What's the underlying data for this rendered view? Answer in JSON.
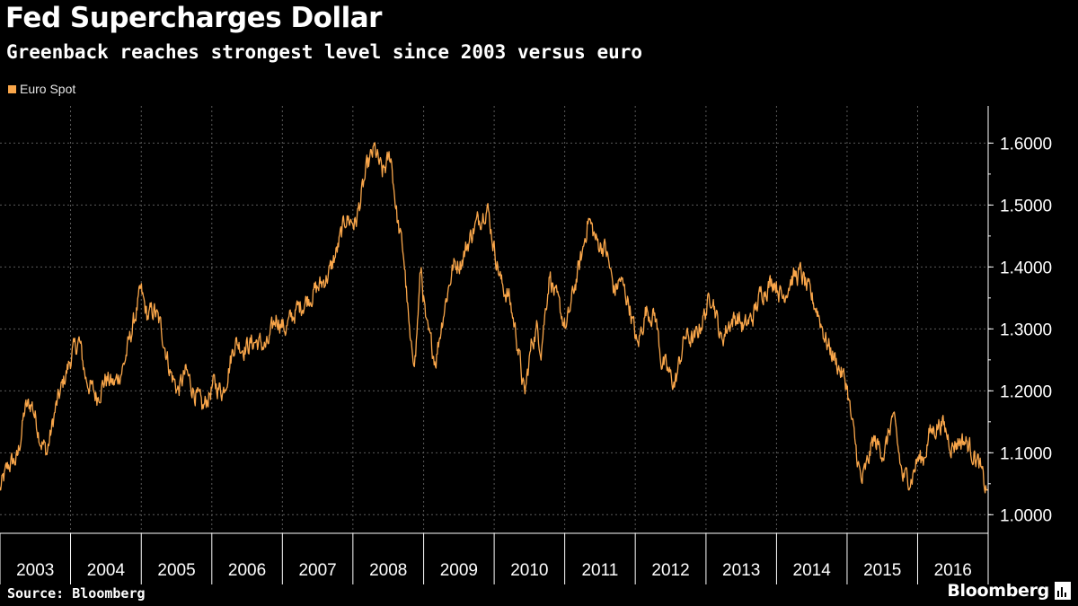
{
  "header": {
    "title": "Fed Supercharges Dollar",
    "subtitle": "Greenback reaches strongest level since 2003 versus euro"
  },
  "footer": {
    "source": "Source: Bloomberg",
    "brand": "Bloomberg"
  },
  "colors": {
    "background": "#000000",
    "series": "#f9a64a",
    "grid": "#5a5a5a",
    "axis": "#ffffff"
  },
  "icons": [
    "bloomberg-logo-icon"
  ],
  "chart_data": {
    "type": "line",
    "legend": "top-left",
    "grid": true,
    "x_type": "date",
    "xlim": [
      "2003-01-01",
      "2016-12-31"
    ],
    "ylim": [
      0.97,
      1.66
    ],
    "x_ticks": [
      "2003",
      "2004",
      "2005",
      "2006",
      "2007",
      "2008",
      "2009",
      "2010",
      "2011",
      "2012",
      "2013",
      "2014",
      "2015",
      "2016"
    ],
    "y_ticks": [
      "1.6000",
      "1.5000",
      "1.4000",
      "1.3000",
      "1.2000",
      "1.1000",
      "1.0000"
    ],
    "series": [
      {
        "name": "Euro Spot",
        "color": "#f9a64a",
        "x": [
          "2003-01-01",
          "2003-02-15",
          "2003-04-01",
          "2003-05-10",
          "2003-06-15",
          "2003-08-01",
          "2003-09-01",
          "2003-10-15",
          "2003-12-01",
          "2004-01-10",
          "2004-02-15",
          "2004-03-20",
          "2004-05-15",
          "2004-07-01",
          "2004-08-15",
          "2004-10-01",
          "2004-11-15",
          "2004-12-30",
          "2005-02-01",
          "2005-03-10",
          "2005-04-15",
          "2005-06-01",
          "2005-07-10",
          "2005-08-20",
          "2005-10-01",
          "2005-11-15",
          "2006-01-10",
          "2006-03-01",
          "2006-05-01",
          "2006-06-15",
          "2006-08-15",
          "2006-10-15",
          "2006-12-01",
          "2007-01-15",
          "2007-03-15",
          "2007-05-15",
          "2007-07-15",
          "2007-09-01",
          "2007-10-15",
          "2007-11-25",
          "2008-01-15",
          "2008-03-15",
          "2008-04-22",
          "2008-06-01",
          "2008-07-15",
          "2008-08-20",
          "2008-09-20",
          "2008-10-27",
          "2008-11-20",
          "2008-12-18",
          "2009-01-15",
          "2009-03-04",
          "2009-04-15",
          "2009-06-01",
          "2009-07-15",
          "2009-09-15",
          "2009-11-25",
          "2010-01-01",
          "2010-02-10",
          "2010-03-20",
          "2010-05-01",
          "2010-06-07",
          "2010-07-15",
          "2010-08-10",
          "2010-09-01",
          "2010-10-15",
          "2010-11-15",
          "2011-01-10",
          "2011-02-15",
          "2011-04-01",
          "2011-05-03",
          "2011-06-15",
          "2011-08-01",
          "2011-09-15",
          "2011-10-15",
          "2011-12-01",
          "2012-01-12",
          "2012-02-25",
          "2012-04-15",
          "2012-05-15",
          "2012-07-24",
          "2012-09-15",
          "2012-11-01",
          "2013-01-01",
          "2013-02-01",
          "2013-03-20",
          "2013-05-01",
          "2013-06-15",
          "2013-07-15",
          "2013-09-01",
          "2013-10-15",
          "2013-12-20",
          "2014-02-01",
          "2014-03-15",
          "2014-05-06",
          "2014-06-15",
          "2014-08-01",
          "2014-09-15",
          "2014-11-01",
          "2014-12-31",
          "2015-01-20",
          "2015-03-16",
          "2015-04-15",
          "2015-05-15",
          "2015-06-15",
          "2015-07-15",
          "2015-08-24",
          "2015-09-15",
          "2015-10-15",
          "2015-12-01",
          "2016-01-01",
          "2016-02-01",
          "2016-03-01",
          "2016-04-01",
          "2016-05-03",
          "2016-06-01",
          "2016-06-27",
          "2016-08-01",
          "2016-09-01",
          "2016-10-15",
          "2016-11-15",
          "2016-12-01",
          "2016-12-20",
          "2016-12-31"
        ],
        "y": [
          1.04,
          1.08,
          1.09,
          1.17,
          1.18,
          1.12,
          1.1,
          1.17,
          1.22,
          1.26,
          1.28,
          1.22,
          1.19,
          1.22,
          1.21,
          1.24,
          1.3,
          1.36,
          1.32,
          1.33,
          1.3,
          1.23,
          1.2,
          1.23,
          1.2,
          1.17,
          1.21,
          1.2,
          1.28,
          1.27,
          1.28,
          1.27,
          1.32,
          1.3,
          1.33,
          1.35,
          1.37,
          1.39,
          1.43,
          1.48,
          1.47,
          1.56,
          1.59,
          1.55,
          1.58,
          1.47,
          1.42,
          1.26,
          1.26,
          1.4,
          1.3,
          1.25,
          1.33,
          1.4,
          1.41,
          1.46,
          1.5,
          1.43,
          1.37,
          1.35,
          1.28,
          1.19,
          1.28,
          1.3,
          1.27,
          1.39,
          1.35,
          1.3,
          1.36,
          1.42,
          1.48,
          1.44,
          1.43,
          1.36,
          1.38,
          1.34,
          1.27,
          1.33,
          1.32,
          1.25,
          1.21,
          1.29,
          1.28,
          1.33,
          1.36,
          1.28,
          1.31,
          1.32,
          1.3,
          1.32,
          1.36,
          1.38,
          1.35,
          1.38,
          1.39,
          1.36,
          1.33,
          1.28,
          1.25,
          1.21,
          1.16,
          1.05,
          1.08,
          1.12,
          1.11,
          1.1,
          1.16,
          1.12,
          1.06,
          1.06,
          1.09,
          1.09,
          1.13,
          1.14,
          1.15,
          1.13,
          1.11,
          1.12,
          1.12,
          1.1,
          1.08,
          1.06,
          1.04,
          1.04
        ]
      }
    ]
  }
}
